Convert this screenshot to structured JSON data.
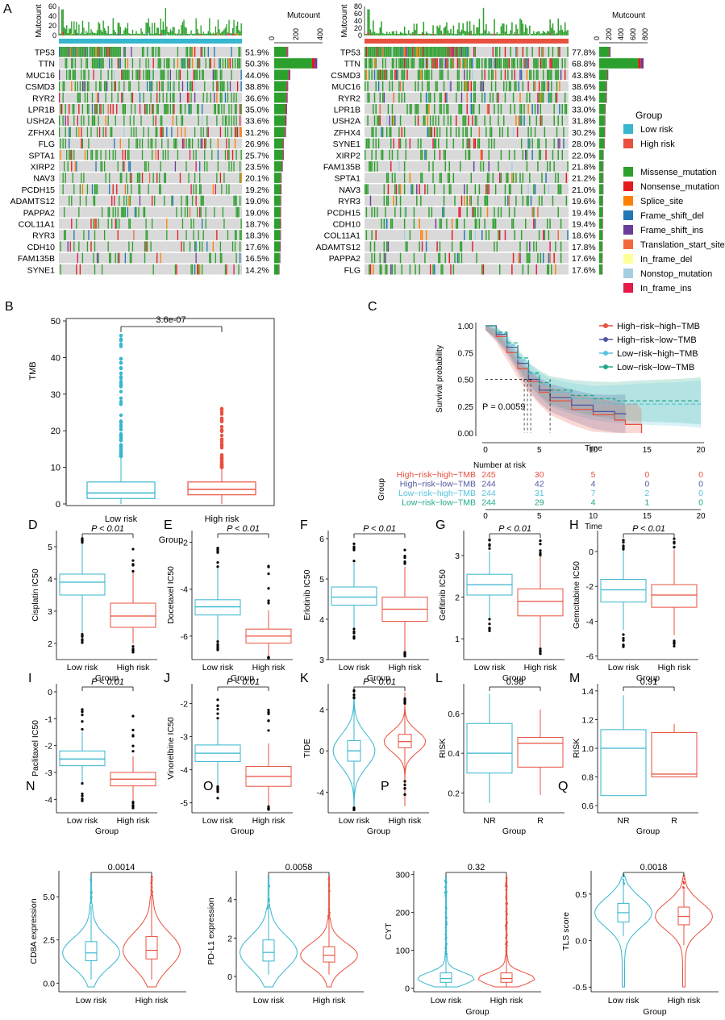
{
  "colors": {
    "low": "#37b6cf",
    "high": "#e8513f",
    "hhTMB": "#e8513f",
    "hlTMB": "#4f58a0",
    "lhTMB": "#56c2db",
    "llTMB": "#22a889",
    "missense": "#2ca02c",
    "nonsense": "#e41a1c",
    "splice": "#ff7f00",
    "fsdel": "#1f78b4",
    "fsins": "#6a3d9a",
    "tss": "#f26a3b",
    "ifdel": "#ffff99",
    "nonstop": "#a6cee3",
    "ifins": "#e31a4a",
    "bg": "#d9d9d9"
  },
  "panels": {
    "A": "A",
    "B": "B",
    "C": "C",
    "D": "D",
    "E": "E",
    "F": "F",
    "G": "G",
    "H": "H",
    "I": "I",
    "J": "J",
    "K": "K",
    "L": "L",
    "M": "M",
    "N": "N",
    "O": "O",
    "P": "P",
    "Q": "Q"
  },
  "oncoplot": {
    "mutcount_label": "Mutcount",
    "low": {
      "genes": [
        "TP53",
        "TTN",
        "MUC16",
        "CSMD3",
        "RYR2",
        "LPR1B",
        "USH2A",
        "ZFHX4",
        "FLG",
        "SPTA1",
        "XIRP2",
        "NAV3",
        "PCDH15",
        "ADAMTS12",
        "PAPPA2",
        "COL11A1",
        "RYR3",
        "CDH10",
        "FAM135B",
        "SYNE1"
      ],
      "pcts": [
        "51.9%",
        "50.3%",
        "44.0%",
        "38.8%",
        "36.6%",
        "35.0%",
        "33.6%",
        "31.2%",
        "26.9%",
        "25.7%",
        "23.5%",
        "20.1%",
        "19.2%",
        "19.0%",
        "19.0%",
        "18.7%",
        "18.3%",
        "17.6%",
        "16.5%",
        "14.2%"
      ],
      "freq": [
        0.519,
        0.503,
        0.44,
        0.388,
        0.366,
        0.35,
        0.336,
        0.312,
        0.269,
        0.257,
        0.235,
        0.201,
        0.192,
        0.19,
        0.19,
        0.187,
        0.183,
        0.176,
        0.165,
        0.142
      ],
      "counts": [
        130,
        400,
        150,
        130,
        125,
        120,
        115,
        110,
        90,
        90,
        80,
        70,
        68,
        66,
        65,
        64,
        63,
        60,
        58,
        50
      ],
      "top_ticks": [
        "0",
        "20",
        "40",
        "60"
      ],
      "right_ticks": [
        "0",
        "200",
        "400"
      ]
    },
    "high": {
      "genes": [
        "TP53",
        "TTN",
        "CSMD3",
        "MUC16",
        "RYR2",
        "LPR1B",
        "USH2A",
        "ZFHX4",
        "SYNE1",
        "XIRP2",
        "FAM135B",
        "SPTA1",
        "NAV3",
        "RYR3",
        "PCDH15",
        "CDH10",
        "COL11A1",
        "ADAMTS12",
        "PAPPA2",
        "FLG"
      ],
      "pcts": [
        "77.8%",
        "68.8%",
        "43.8%",
        "38.6%",
        "38.4%",
        "33.0%",
        "31.8%",
        "30.2%",
        "28.0%",
        "22.0%",
        "21.8%",
        "21.2%",
        "21.0%",
        "19.6%",
        "19.4%",
        "19.4%",
        "18.6%",
        "17.8%",
        "17.6%",
        "17.6%"
      ],
      "freq": [
        0.778,
        0.688,
        0.438,
        0.386,
        0.384,
        0.33,
        0.318,
        0.302,
        0.28,
        0.22,
        0.218,
        0.212,
        0.21,
        0.196,
        0.194,
        0.194,
        0.186,
        0.178,
        0.176,
        0.176
      ],
      "counts": [
        200,
        780,
        160,
        140,
        135,
        115,
        110,
        105,
        100,
        80,
        78,
        76,
        75,
        70,
        69,
        68,
        66,
        63,
        62,
        62
      ],
      "top_ticks": [
        "0",
        "20",
        "40",
        "60",
        "80"
      ],
      "right_ticks": [
        "0",
        "200",
        "400",
        "600",
        "800"
      ]
    },
    "legend": {
      "group_title": "Group",
      "groups": [
        "Low risk",
        "High risk"
      ],
      "types": [
        "Missense_mutation",
        "Nonsense_mutation",
        "Splice_site",
        "Frame_shift_del",
        "Frame_shift_ins",
        "Translation_start_site",
        "In_frame_del",
        "Nonstop_mutation",
        "In_frame_ins"
      ]
    }
  },
  "panelB": {
    "ylabel": "TMB",
    "xlabel": "Group",
    "pvalue": "3.6e-07",
    "yticks": [
      "0",
      "10",
      "20",
      "30",
      "40",
      "50"
    ],
    "groups": [
      "Low risk",
      "High risk"
    ]
  },
  "panelC": {
    "ylabel": "Survival probability",
    "xlabel": "Time",
    "pvalue": "P = 0.0059",
    "legend": [
      "High−risk−high−TMB",
      "High−risk−low−TMB",
      "Low−risk−high−TMB",
      "Low−risk−low−TMB"
    ],
    "yticks": [
      "0.00",
      "0.25",
      "0.50",
      "0.75",
      "1.00"
    ],
    "xticks": [
      "0",
      "5",
      "10",
      "15",
      "20"
    ],
    "risk_title": "Number at risk",
    "risk_ylabel": "Group",
    "risk_xlabel": "Time",
    "risk_table": [
      [
        "245",
        "30",
        "5",
        "0",
        "0"
      ],
      [
        "244",
        "42",
        "4",
        "0",
        "0"
      ],
      [
        "244",
        "31",
        "7",
        "2",
        "0"
      ],
      [
        "244",
        "29",
        "4",
        "1",
        "0"
      ]
    ]
  },
  "boxpanels": [
    {
      "id": "D",
      "ylabel": "Cisplatin IC50",
      "p": "P < 0.01",
      "yticks": [
        "2",
        "3",
        "4",
        "5"
      ]
    },
    {
      "id": "E",
      "ylabel": "Docetaxel IC50",
      "p": "P < 0.01",
      "yticks": [
        "-6",
        "-4",
        "-2"
      ]
    },
    {
      "id": "F",
      "ylabel": "Erlotinib IC50",
      "p": "P < 0.01",
      "yticks": [
        "3",
        "4",
        "5",
        "6"
      ]
    },
    {
      "id": "G",
      "ylabel": "Gefitinib IC50",
      "p": "P < 0.01",
      "yticks": [
        "1",
        "2",
        "3"
      ]
    },
    {
      "id": "H",
      "ylabel": "Gemcitabine IC50",
      "p": "P < 0.01",
      "yticks": [
        "-6",
        "-4",
        "-2",
        "0"
      ]
    },
    {
      "id": "I",
      "ylabel": "Paclitaxel IC50",
      "p": "P < 0.01",
      "yticks": [
        "-4",
        "-3",
        "-2",
        "-1",
        "0"
      ]
    },
    {
      "id": "J",
      "ylabel": "Vinorelbine IC50",
      "p": "P < 0.01",
      "yticks": [
        "-5",
        "-4",
        "-3",
        "-2"
      ]
    },
    {
      "id": "K",
      "ylabel": "TIDE",
      "p": "P < 0.01",
      "yticks": [
        "-4",
        "0",
        "4"
      ]
    },
    {
      "id": "L",
      "ylabel": "RISK",
      "p": "0.98",
      "yticks": [
        "0.2",
        "0.4",
        "0.6"
      ]
    },
    {
      "id": "M",
      "ylabel": "RISK",
      "p": "0.91",
      "yticks": [
        "0.6",
        "0.8",
        "1.0",
        "1.2",
        "1.4"
      ]
    },
    {
      "id": "N",
      "ylabel": "CD8A expression",
      "p": "0.0014",
      "yticks": [
        "0.0",
        "2.5",
        "5.0"
      ]
    },
    {
      "id": "O",
      "ylabel": "PD-L1 expression",
      "p": "0.0058",
      "yticks": [
        "0",
        "2",
        "4"
      ]
    },
    {
      "id": "P",
      "ylabel": "CYT",
      "p": "0.32",
      "yticks": [
        "0",
        "100",
        "200",
        "300"
      ]
    },
    {
      "id": "Q",
      "ylabel": "TLS score",
      "p": "0.0018",
      "yticks": [
        "-0.5",
        "0.0",
        "0.5"
      ]
    }
  ],
  "group_label": "Group",
  "low_label": "Low risk",
  "high_label": "High risk",
  "nr_label": "NR",
  "r_label": "R",
  "chart_data": [
    {
      "type": "heatmap",
      "title": "Oncoplot Low risk",
      "categories": [
        "TP53",
        "TTN",
        "MUC16",
        "CSMD3",
        "RYR2",
        "LPR1B",
        "USH2A",
        "ZFHX4",
        "FLG",
        "SPTA1",
        "XIRP2",
        "NAV3",
        "PCDH15",
        "ADAMTS12",
        "PAPPA2",
        "COL11A1",
        "RYR3",
        "CDH10",
        "FAM135B",
        "SYNE1"
      ],
      "values": [
        51.9,
        50.3,
        44.0,
        38.8,
        36.6,
        35.0,
        33.6,
        31.2,
        26.9,
        25.7,
        23.5,
        20.1,
        19.2,
        19.0,
        19.0,
        18.7,
        18.3,
        17.6,
        16.5,
        14.2
      ]
    },
    {
      "type": "heatmap",
      "title": "Oncoplot High risk",
      "categories": [
        "TP53",
        "TTN",
        "CSMD3",
        "MUC16",
        "RYR2",
        "LPR1B",
        "USH2A",
        "ZFHX4",
        "SYNE1",
        "XIRP2",
        "FAM135B",
        "SPTA1",
        "NAV3",
        "RYR3",
        "PCDH15",
        "CDH10",
        "COL11A1",
        "ADAMTS12",
        "PAPPA2",
        "FLG"
      ],
      "values": [
        77.8,
        68.8,
        43.8,
        38.6,
        38.4,
        33.0,
        31.8,
        30.2,
        28.0,
        22.0,
        21.8,
        21.2,
        21.0,
        19.6,
        19.4,
        19.4,
        18.6,
        17.8,
        17.6,
        17.6
      ]
    },
    {
      "type": "box",
      "title": "TMB",
      "categories": [
        "Low risk",
        "High risk"
      ],
      "ylim": [
        0,
        50
      ],
      "boxes": [
        {
          "q1": 1.5,
          "med": 3,
          "q3": 6,
          "lo": 0,
          "hi": 13,
          "max": 46
        },
        {
          "q1": 2.5,
          "med": 4,
          "q3": 6,
          "lo": 0,
          "hi": 10,
          "max": 26
        }
      ]
    },
    {
      "type": "line",
      "title": "Survival",
      "xlim": [
        0,
        20
      ],
      "ylim": [
        0,
        1
      ],
      "series": [
        {
          "name": "High-risk-high-TMB",
          "x": [
            0,
            1,
            2,
            3,
            4,
            5,
            6,
            8,
            10,
            12,
            13,
            14,
            14.5
          ],
          "y": [
            1,
            0.9,
            0.75,
            0.6,
            0.48,
            0.38,
            0.3,
            0.22,
            0.17,
            0.12,
            0.08,
            0.08,
            0
          ]
        },
        {
          "name": "High-risk-low-TMB",
          "x": [
            0,
            1,
            2,
            3,
            4,
            5,
            6,
            8,
            10,
            12,
            13
          ],
          "y": [
            1,
            0.92,
            0.8,
            0.65,
            0.5,
            0.4,
            0.33,
            0.26,
            0.2,
            0.18,
            0.17
          ]
        },
        {
          "name": "Low-risk-high-TMB",
          "x": [
            0,
            1,
            2,
            3,
            4,
            5,
            6,
            8,
            10,
            12,
            14,
            18,
            20
          ],
          "y": [
            1,
            0.93,
            0.82,
            0.68,
            0.55,
            0.45,
            0.38,
            0.32,
            0.28,
            0.27,
            0.27,
            0.27,
            0.27
          ]
        },
        {
          "name": "Low-risk-low-TMB",
          "x": [
            0,
            1,
            2,
            3,
            4,
            5,
            6,
            8,
            10,
            12,
            14,
            18,
            20
          ],
          "y": [
            1,
            0.94,
            0.84,
            0.7,
            0.56,
            0.47,
            0.4,
            0.35,
            0.32,
            0.3,
            0.3,
            0.3,
            0.3
          ]
        }
      ]
    },
    {
      "type": "box",
      "title": "Cisplatin IC50",
      "ylim": [
        1.5,
        5.5
      ],
      "boxes": [
        {
          "q1": 3.5,
          "med": 3.9,
          "q3": 4.15,
          "lo": 2.3,
          "hi": 5.1
        },
        {
          "q1": 2.5,
          "med": 2.85,
          "q3": 3.25,
          "lo": 2,
          "hi": 4.2
        }
      ]
    },
    {
      "type": "box",
      "title": "Docetaxel IC50",
      "ylim": [
        -7,
        -1.5
      ],
      "boxes": [
        {
          "q1": -5.1,
          "med": -4.75,
          "q3": -4.45,
          "lo": -6.2,
          "hi": -3.1
        },
        {
          "q1": -6.3,
          "med": -6,
          "q3": -5.7,
          "lo": -6.9,
          "hi": -4.9
        }
      ]
    },
    {
      "type": "box",
      "title": "Erlotinib IC50",
      "ylim": [
        3,
        6.2
      ],
      "boxes": [
        {
          "q1": 4.35,
          "med": 4.55,
          "q3": 4.8,
          "lo": 3.8,
          "hi": 5.4
        },
        {
          "q1": 3.95,
          "med": 4.25,
          "q3": 4.55,
          "lo": 3.2,
          "hi": 5.3
        }
      ]
    },
    {
      "type": "box",
      "title": "Gefitinib IC50",
      "ylim": [
        0.5,
        3.6
      ],
      "boxes": [
        {
          "q1": 2.05,
          "med": 2.3,
          "q3": 2.55,
          "lo": 1.5,
          "hi": 3.1
        },
        {
          "q1": 1.55,
          "med": 1.9,
          "q3": 2.2,
          "lo": 0.8,
          "hi": 3.0
        }
      ]
    },
    {
      "type": "box",
      "title": "Gemcitabine IC50",
      "ylim": [
        -6.2,
        1.2
      ],
      "boxes": [
        {
          "q1": -2.9,
          "med": -2.2,
          "q3": -1.6,
          "lo": -4.5,
          "hi": 0.1
        },
        {
          "q1": -3.2,
          "med": -2.5,
          "q3": -1.9,
          "lo": -4.8,
          "hi": 0.1
        }
      ]
    },
    {
      "type": "box",
      "title": "Paclitaxel IC50",
      "ylim": [
        -4.5,
        0.3
      ],
      "boxes": [
        {
          "q1": -2.75,
          "med": -2.5,
          "q3": -2.2,
          "lo": -3.4,
          "hi": -1.5
        },
        {
          "q1": -3.5,
          "med": -3.25,
          "q3": -3.0,
          "lo": -4.1,
          "hi": -2.4
        }
      ]
    },
    {
      "type": "box",
      "title": "Vinorelbine IC50",
      "ylim": [
        -5.3,
        -1.4
      ],
      "boxes": [
        {
          "q1": -3.75,
          "med": -3.5,
          "q3": -3.25,
          "lo": -4.5,
          "hi": -2.5
        },
        {
          "q1": -4.5,
          "med": -4.2,
          "q3": -3.9,
          "lo": -5.1,
          "hi": -3.2
        }
      ]
    },
    {
      "type": "box",
      "title": "TIDE",
      "ylim": [
        -6,
        6.5
      ],
      "boxes": [
        {
          "q1": -1,
          "med": 0,
          "q3": 1,
          "lo": -5.5,
          "hi": 5
        },
        {
          "q1": 0.3,
          "med": 0.9,
          "q3": 1.6,
          "lo": -2.5,
          "hi": 4.5
        }
      ]
    },
    {
      "type": "box",
      "title": "RISK NR vs R (L)",
      "categories": [
        "NR",
        "R"
      ],
      "ylim": [
        0.1,
        0.75
      ],
      "boxes": [
        {
          "q1": 0.3,
          "med": 0.4,
          "q3": 0.55,
          "lo": 0.15,
          "hi": 0.7
        },
        {
          "q1": 0.33,
          "med": 0.45,
          "q3": 0.48,
          "lo": 0.19,
          "hi": 0.62
        }
      ]
    },
    {
      "type": "box",
      "title": "RISK NR vs R (M)",
      "categories": [
        "NR",
        "R"
      ],
      "ylim": [
        0.55,
        1.45
      ],
      "boxes": [
        {
          "q1": 0.67,
          "med": 1.0,
          "q3": 1.13,
          "lo": 0.67,
          "hi": 1.37
        },
        {
          "q1": 0.8,
          "med": 0.82,
          "q3": 1.11,
          "lo": 0.8,
          "hi": 1.17
        }
      ]
    },
    {
      "type": "violin",
      "title": "CD8A expression",
      "ylim": [
        -0.5,
        6.5
      ],
      "boxes": [
        {
          "q1": 1.3,
          "med": 1.75,
          "q3": 2.4,
          "lo": 0.2,
          "hi": 4.5
        },
        {
          "q1": 1.4,
          "med": 1.9,
          "q3": 2.7,
          "lo": 0.2,
          "hi": 5
        }
      ]
    },
    {
      "type": "violin",
      "title": "PD-L1 expression",
      "ylim": [
        -0.8,
        5.5
      ],
      "boxes": [
        {
          "q1": 0.8,
          "med": 1.25,
          "q3": 1.9,
          "lo": 0.1,
          "hi": 3.5
        },
        {
          "q1": 0.75,
          "med": 1.1,
          "q3": 1.55,
          "lo": 0.1,
          "hi": 3
        }
      ]
    },
    {
      "type": "violin",
      "title": "CYT",
      "ylim": [
        -10,
        310
      ],
      "boxes": [
        {
          "q1": 15,
          "med": 25,
          "q3": 40,
          "lo": 2,
          "hi": 90
        },
        {
          "q1": 15,
          "med": 25,
          "q3": 40,
          "lo": 2,
          "hi": 90
        }
      ]
    },
    {
      "type": "violin",
      "title": "TLS score",
      "ylim": [
        -0.55,
        0.75
      ],
      "boxes": [
        {
          "q1": 0.2,
          "med": 0.3,
          "q3": 0.4,
          "lo": 0.05,
          "hi": 0.6
        },
        {
          "q1": 0.17,
          "med": 0.26,
          "q3": 0.36,
          "lo": -0.05,
          "hi": 0.55
        }
      ]
    }
  ]
}
